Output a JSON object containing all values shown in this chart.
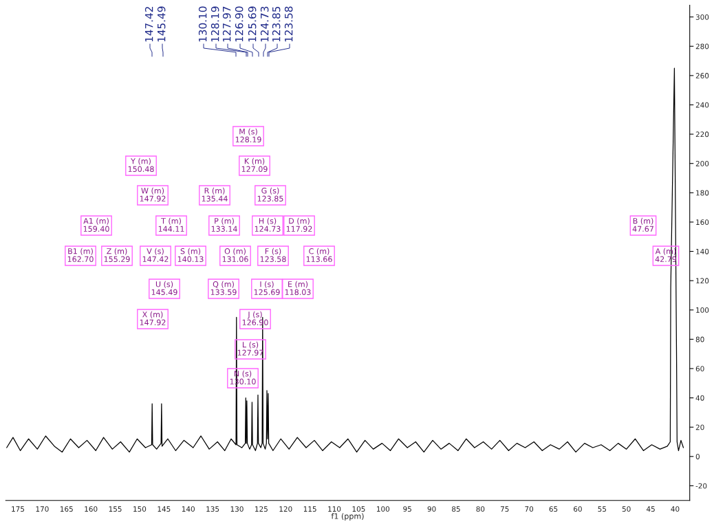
{
  "chart_data": {
    "type": "line",
    "xlabel": "f1 (ppm)",
    "xlim": [
      177.5,
      37
    ],
    "ylim": [
      -30,
      308
    ],
    "xticks": [
      175,
      170,
      165,
      160,
      155,
      150,
      145,
      140,
      135,
      130,
      125,
      120,
      115,
      110,
      105,
      100,
      95,
      90,
      85,
      80,
      75,
      70,
      65,
      60,
      55,
      50,
      45,
      40
    ],
    "yticks": [
      -20,
      0,
      20,
      40,
      60,
      80,
      100,
      120,
      140,
      160,
      180,
      200,
      220,
      240,
      260,
      280,
      300
    ],
    "grid": false,
    "legend": false,
    "marker": "none",
    "line_style": "solid",
    "series": [
      {
        "color": "#000000",
        "x": [
          177.3,
          176.0,
          174.5,
          172.8,
          171.0,
          169.3,
          167.5,
          165.9,
          164.2,
          162.5,
          160.8,
          159.0,
          157.4,
          155.6,
          153.9,
          152.1,
          150.5,
          148.8,
          147.52,
          147.42,
          147.32,
          146.5,
          145.59,
          145.49,
          145.39,
          144.2,
          142.6,
          140.9,
          139.0,
          137.4,
          135.7,
          134.0,
          132.5,
          131.2,
          130.2,
          130.1,
          130.0,
          129.0,
          128.29,
          128.19,
          128.08,
          127.97,
          127.87,
          127.4,
          127.0,
          126.9,
          126.8,
          126.2,
          125.79,
          125.69,
          125.59,
          125.1,
          124.83,
          124.73,
          124.63,
          124.2,
          123.95,
          123.85,
          123.72,
          123.58,
          123.48,
          122.6,
          121.0,
          119.3,
          117.6,
          115.8,
          114.1,
          112.4,
          110.6,
          108.9,
          107.2,
          105.4,
          103.7,
          102.0,
          100.2,
          98.5,
          96.8,
          95.0,
          93.3,
          91.6,
          89.8,
          88.1,
          86.4,
          84.6,
          82.9,
          81.2,
          79.4,
          77.7,
          76.0,
          74.2,
          72.5,
          70.8,
          69.0,
          67.3,
          65.6,
          63.8,
          62.1,
          60.4,
          58.6,
          56.9,
          55.2,
          53.4,
          51.7,
          50.0,
          48.2,
          46.5,
          44.8,
          43.1,
          41.6,
          41.0,
          40.9,
          40.7,
          40.5,
          40.35,
          40.3,
          40.15,
          40.0,
          39.85,
          39.7,
          39.6,
          39.3,
          38.8,
          38.3
        ],
        "values": [
          6,
          13,
          4,
          12,
          5,
          14,
          7,
          3,
          12,
          6,
          11,
          4,
          13,
          5,
          10,
          3,
          12,
          6,
          8,
          36,
          8,
          5,
          9,
          36,
          7,
          12,
          4,
          11,
          6,
          14,
          5,
          10,
          4,
          12,
          8,
          95,
          8,
          6,
          9,
          40,
          9,
          38,
          9,
          5,
          8,
          37,
          8,
          4,
          9,
          42,
          9,
          6,
          9,
          95,
          9,
          5,
          9,
          45,
          12,
          43,
          9,
          4,
          12,
          5,
          13,
          6,
          11,
          4,
          10,
          6,
          12,
          3,
          11,
          5,
          9,
          4,
          12,
          6,
          10,
          3,
          11,
          5,
          9,
          4,
          12,
          6,
          10,
          5,
          11,
          4,
          9,
          6,
          10,
          4,
          8,
          5,
          10,
          3,
          9,
          6,
          8,
          4,
          9,
          5,
          12,
          4,
          8,
          5,
          7,
          10,
          115,
          null,
          null,
          225,
          null,
          265,
          null,
          null,
          65,
          10,
          4,
          11,
          6
        ]
      }
    ],
    "annotations": [
      "147.42",
      "145.49",
      "130.10",
      "128.19",
      "127.97",
      "126.90",
      "125.69",
      "124.73",
      "123.85",
      "123.58",
      "M (s)\n128.19",
      "K (m)\n127.09",
      "Y (m)\n150.48",
      "W (m)\n147.92",
      "R (m)\n135.44",
      "G (s)\n123.85",
      "A1 (m)\n159.40",
      "T (m)\n144.11",
      "P (m)\n133.14",
      "H (s)\n124.73",
      "D (m)\n117.92",
      "B1 (m)\n162.70",
      "Z (m)\n155.29",
      "V (s)\n147.42",
      "S (m)\n140.13",
      "O (m)\n131.06",
      "F (s)\n123.58",
      "C (m)\n113.66",
      "U (s)\n145.49",
      "Q (m)\n133.59",
      "I (s)\n125.69",
      "E (m)\n118.03",
      "X (m)\n147.92",
      "J (s)\n126.90",
      "L (s)\n127.97",
      "N (s)\n130.10",
      "B (m)\n47.67",
      "A (m)\n42.79"
    ]
  }
}
